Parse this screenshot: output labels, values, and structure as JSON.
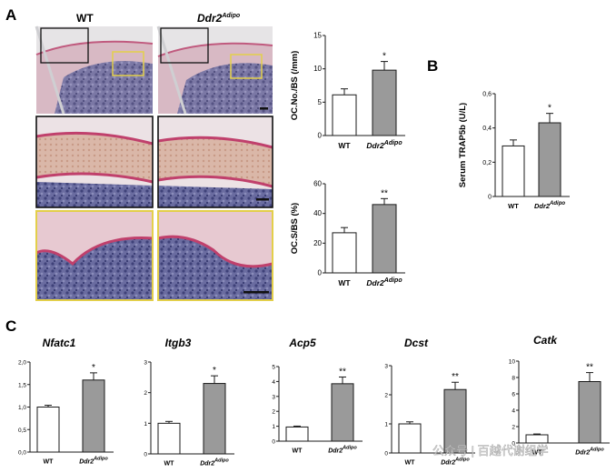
{
  "panels": {
    "A": {
      "letter": "A",
      "col_wt": "WT",
      "col_ko_base": "Ddr2",
      "col_ko_sup": "Adipo"
    },
    "B": {
      "letter": "B"
    },
    "C": {
      "letter": "C"
    }
  },
  "colors": {
    "wt_fill": "#ffffff",
    "ko_fill": "#9a9a9a",
    "stroke": "#1a1a1a",
    "box_black": "#111111",
    "box_yellow": "#e3cf4a",
    "histo_pink": "#d9a5b3",
    "histo_purple": "#5d6096",
    "histo_bg": "#ece9ea"
  },
  "watermark": "公众号 | 百越代谢组学",
  "chart_data": [
    {
      "id": "ocno",
      "type": "bar",
      "categories": [
        "WT",
        "Ddr2 Adipo"
      ],
      "cat_base": [
        "WT",
        "Ddr2"
      ],
      "cat_sup": [
        "",
        "Adipo"
      ],
      "values": [
        6.1,
        9.8
      ],
      "errors": [
        0.9,
        1.3
      ],
      "sig": [
        "",
        "*"
      ],
      "ylabel": "OC.No./BS (/mm)",
      "ylim": [
        0,
        15
      ],
      "yticks": [
        "0",
        "5",
        "10",
        "15"
      ],
      "yticklabels": [
        "0",
        "5",
        "10",
        "15"
      ]
    },
    {
      "id": "ocs",
      "type": "bar",
      "categories": [
        "WT",
        "Ddr2 Adipo"
      ],
      "cat_base": [
        "WT",
        "Ddr2"
      ],
      "cat_sup": [
        "",
        "Adipo"
      ],
      "values": [
        27,
        46
      ],
      "errors": [
        3.5,
        4.0
      ],
      "sig": [
        "",
        "**"
      ],
      "ylabel": "OC.S/BS (%)",
      "ylim": [
        0,
        60
      ],
      "yticks": [
        "0",
        "20",
        "40",
        "60"
      ],
      "yticklabels": [
        "0",
        "20",
        "40",
        "60"
      ]
    },
    {
      "id": "trap",
      "type": "bar",
      "categories": [
        "WT",
        "Ddr2 Adipo"
      ],
      "cat_base": [
        "WT",
        "Ddr2"
      ],
      "cat_sup": [
        "",
        "Adipo"
      ],
      "values": [
        0.295,
        0.43
      ],
      "errors": [
        0.035,
        0.055
      ],
      "sig": [
        "",
        "*"
      ],
      "ylabel": "Serum TRAP5b (U/L)",
      "ylim": [
        0,
        0.6
      ],
      "yticks": [
        "0",
        "0.2",
        "0.4",
        "0.6"
      ],
      "yticklabels": [
        "0",
        "0,2",
        "0,4",
        "0,6"
      ]
    },
    {
      "id": "nfatc1",
      "type": "bar",
      "title": "Nfatc1",
      "categories": [
        "WT",
        "Ddr2 Adipo"
      ],
      "cat_base": [
        "WT",
        "Ddr2"
      ],
      "cat_sup": [
        "",
        "Adipo"
      ],
      "values": [
        1.0,
        1.6
      ],
      "errors": [
        0.04,
        0.16
      ],
      "sig": [
        "",
        "*"
      ],
      "ylim": [
        0,
        2.0
      ],
      "yticks": [
        "0",
        "0.5",
        "1",
        "1.5",
        "2"
      ],
      "yticklabels": [
        "0,0",
        "0,5",
        "1,0",
        "1,5",
        "2,0"
      ]
    },
    {
      "id": "itgb3",
      "type": "bar",
      "title": "Itgb3",
      "categories": [
        "WT",
        "Ddr2 Adipo"
      ],
      "cat_base": [
        "WT",
        "Ddr2"
      ],
      "cat_sup": [
        "",
        "Adipo"
      ],
      "values": [
        1.0,
        2.3
      ],
      "errors": [
        0.06,
        0.25
      ],
      "sig": [
        "",
        "*"
      ],
      "ylim": [
        0,
        3
      ],
      "yticks": [
        "0",
        "1",
        "2",
        "3"
      ],
      "yticklabels": [
        "0",
        "1",
        "2",
        "3"
      ]
    },
    {
      "id": "acp5",
      "type": "bar",
      "title": "Acp5",
      "categories": [
        "WT",
        "Ddr2 Adipo"
      ],
      "cat_base": [
        "WT",
        "Ddr2"
      ],
      "cat_sup": [
        "",
        "Adipo"
      ],
      "values": [
        0.95,
        3.85
      ],
      "errors": [
        0.06,
        0.45
      ],
      "sig": [
        "",
        "**"
      ],
      "ylim": [
        0,
        5
      ],
      "yticks": [
        "0",
        "1",
        "2",
        "3",
        "4",
        "5"
      ],
      "yticklabels": [
        "0",
        "1",
        "2",
        "3",
        "4",
        "5"
      ]
    },
    {
      "id": "dcst",
      "type": "bar",
      "title": "Dcst",
      "categories": [
        "WT",
        "Ddr2 Adipo"
      ],
      "cat_base": [
        "WT",
        "Ddr2"
      ],
      "cat_sup": [
        "",
        "Adipo"
      ],
      "values": [
        1.0,
        2.18
      ],
      "errors": [
        0.07,
        0.25
      ],
      "sig": [
        "",
        "**"
      ],
      "ylim": [
        0,
        3
      ],
      "yticks": [
        "0",
        "1",
        "2",
        "3"
      ],
      "yticklabels": [
        "0",
        "1",
        "2",
        "3"
      ]
    },
    {
      "id": "catk",
      "type": "bar",
      "title": "Catk",
      "categories": [
        "WT",
        "Ddr2 Adipo"
      ],
      "cat_base": [
        "WT",
        "Ddr2"
      ],
      "cat_sup": [
        "",
        "Adipo"
      ],
      "values": [
        1.0,
        7.5
      ],
      "errors": [
        0.1,
        1.1
      ],
      "sig": [
        "",
        "**"
      ],
      "ylim": [
        0,
        10
      ],
      "yticks": [
        "0",
        "2",
        "4",
        "6",
        "8",
        "10"
      ],
      "yticklabels": [
        "0",
        "2",
        "4",
        "6",
        "8",
        "10"
      ]
    }
  ]
}
